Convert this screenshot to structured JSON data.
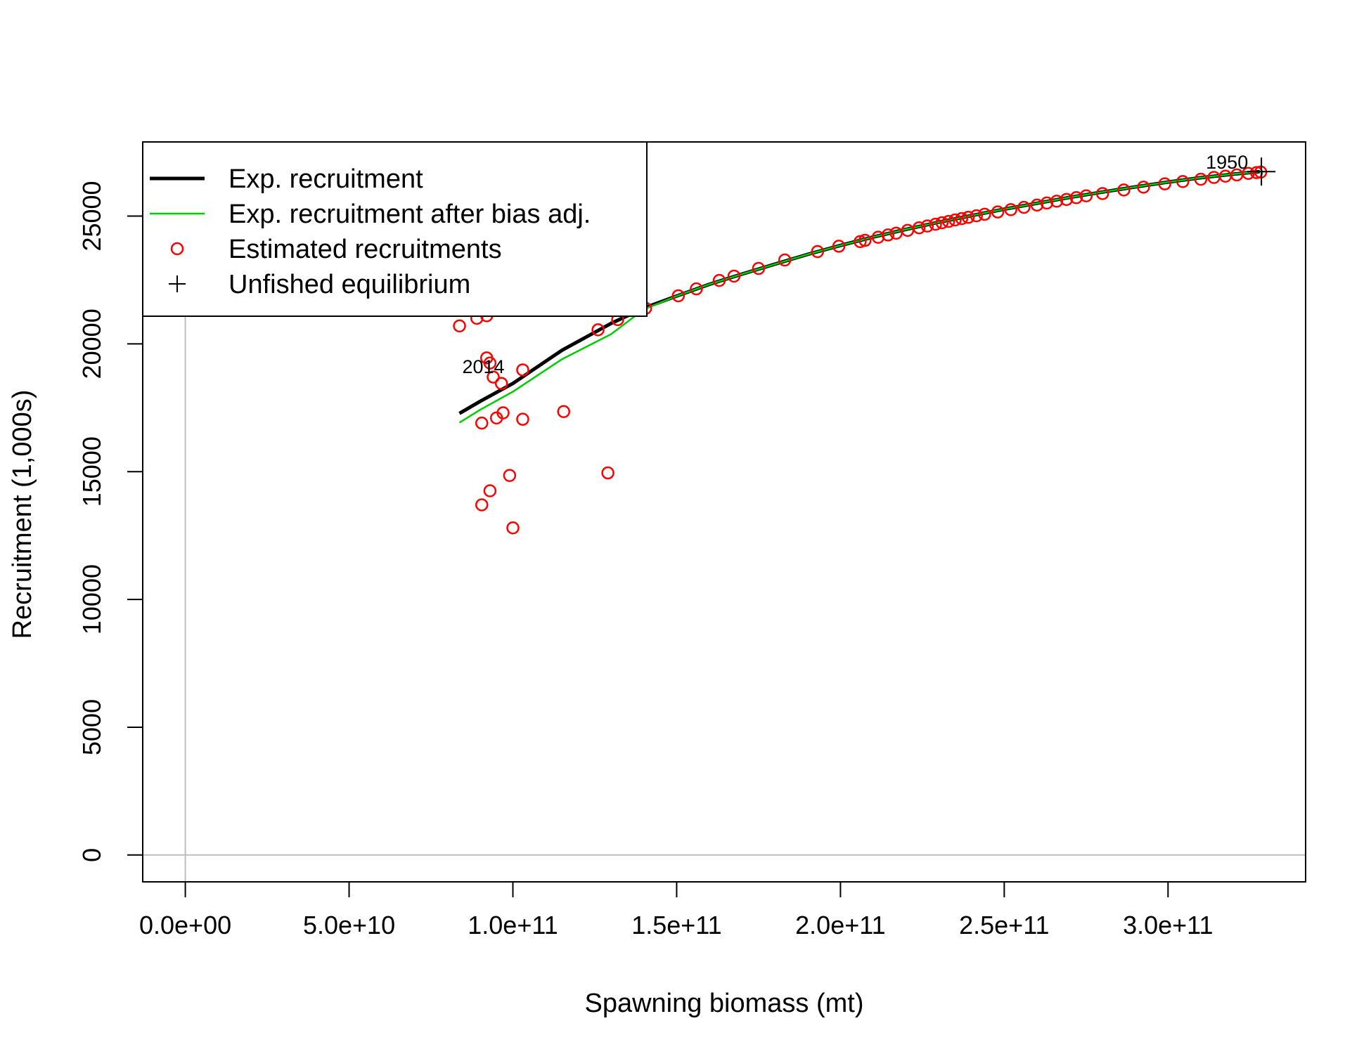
{
  "chart_data": {
    "type": "scatter",
    "title": "",
    "xlabel": "Spawning biomass (mt)",
    "ylabel": "Recruitment (1,000s)",
    "xlim": [
      -13000000000.0,
      342000000000.0
    ],
    "ylim": [
      -1050,
      27900
    ],
    "x_ticks": [
      0,
      50000000000.0,
      100000000000.0,
      150000000000.0,
      200000000000.0,
      250000000000.0,
      300000000000.0
    ],
    "x_tick_labels": [
      "0.0e+00",
      "5.0e+10",
      "1.0e+11",
      "1.5e+11",
      "2.0e+11",
      "2.5e+11",
      "3.0e+11"
    ],
    "y_ticks": [
      0,
      5000,
      10000,
      15000,
      20000,
      25000
    ],
    "y_tick_labels": [
      "0",
      "5000",
      "10000",
      "15000",
      "20000",
      "25000"
    ],
    "grid": false,
    "reference_lines": {
      "x": 0,
      "y": 0,
      "color": "#bebebe"
    },
    "legend": {
      "position": "top-left",
      "entries": [
        {
          "label": "Exp. recruitment",
          "color": "#000000",
          "symbol": "thick-line"
        },
        {
          "label": "Exp. recruitment after bias adj.",
          "color": "#00cd00",
          "symbol": "line"
        },
        {
          "label": "Estimated recruitments",
          "color": "#ff0000",
          "symbol": "circle"
        },
        {
          "label": "Unfished equilibrium",
          "color": "#000000",
          "symbol": "plus"
        }
      ]
    },
    "series": [
      {
        "name": "Exp. recruitment",
        "kind": "line",
        "color": "#000000",
        "points": [
          [
            83700000000.0,
            17280
          ],
          [
            90000000000.0,
            17750
          ],
          [
            100000000000.0,
            18450
          ],
          [
            115000000000.0,
            19750
          ],
          [
            130000000000.0,
            20800
          ],
          [
            140000000000.0,
            21400
          ],
          [
            150000000000.0,
            21870
          ],
          [
            160000000000.0,
            22330
          ],
          [
            170000000000.0,
            22730
          ],
          [
            180000000000.0,
            23120
          ],
          [
            190000000000.0,
            23500
          ],
          [
            200000000000.0,
            23850
          ],
          [
            210000000000.0,
            24180
          ],
          [
            220000000000.0,
            24480
          ],
          [
            230000000000.0,
            24760
          ],
          [
            240000000000.0,
            25020
          ],
          [
            250000000000.0,
            25270
          ],
          [
            260000000000.0,
            25500
          ],
          [
            270000000000.0,
            25730
          ],
          [
            280000000000.0,
            25940
          ],
          [
            290000000000.0,
            26140
          ],
          [
            300000000000.0,
            26330
          ],
          [
            310000000000.0,
            26500
          ],
          [
            320000000000.0,
            26640
          ],
          [
            328000000000.0,
            26740
          ]
        ]
      },
      {
        "name": "Exp. recruitment after bias adj.",
        "kind": "line",
        "color": "#00cd00",
        "points": [
          [
            83700000000.0,
            16920
          ],
          [
            90000000000.0,
            17420
          ],
          [
            100000000000.0,
            18130
          ],
          [
            115000000000.0,
            19400
          ],
          [
            130000000000.0,
            20380
          ],
          [
            140000000000.0,
            21350
          ],
          [
            150000000000.0,
            21870
          ],
          [
            160000000000.0,
            22330
          ],
          [
            170000000000.0,
            22730
          ],
          [
            180000000000.0,
            23120
          ],
          [
            190000000000.0,
            23500
          ],
          [
            200000000000.0,
            23850
          ],
          [
            210000000000.0,
            24180
          ],
          [
            220000000000.0,
            24480
          ],
          [
            230000000000.0,
            24760
          ],
          [
            240000000000.0,
            25020
          ],
          [
            250000000000.0,
            25270
          ],
          [
            260000000000.0,
            25500
          ],
          [
            270000000000.0,
            25730
          ],
          [
            280000000000.0,
            25940
          ],
          [
            290000000000.0,
            26140
          ],
          [
            300000000000.0,
            26330
          ],
          [
            310000000000.0,
            26500
          ],
          [
            320000000000.0,
            26640
          ],
          [
            328000000000.0,
            26740
          ]
        ]
      },
      {
        "name": "Estimated recruitments",
        "kind": "points",
        "color": "#ff0000",
        "points": [
          [
            328300000000.0,
            26720
          ],
          [
            327000000000.0,
            26700
          ],
          [
            324500000000.0,
            26670
          ],
          [
            321000000000.0,
            26610
          ],
          [
            317500000000.0,
            26560
          ],
          [
            314000000000.0,
            26510
          ],
          [
            310000000000.0,
            26440
          ],
          [
            304500000000.0,
            26350
          ],
          [
            299000000000.0,
            26260
          ],
          [
            292500000000.0,
            26130
          ],
          [
            286500000000.0,
            26020
          ],
          [
            280000000000.0,
            25880
          ],
          [
            275000000000.0,
            25790
          ],
          [
            272000000000.0,
            25720
          ],
          [
            269000000000.0,
            25650
          ],
          [
            266000000000.0,
            25580
          ],
          [
            263000000000.0,
            25510
          ],
          [
            260000000000.0,
            25430
          ],
          [
            256000000000.0,
            25340
          ],
          [
            252000000000.0,
            25250
          ],
          [
            248000000000.0,
            25160
          ],
          [
            244000000000.0,
            25070
          ],
          [
            241500000000.0,
            25010
          ],
          [
            239000000000.0,
            24950
          ],
          [
            237000000000.0,
            24900
          ],
          [
            235000000000.0,
            24850
          ],
          [
            233000000000.0,
            24790
          ],
          [
            231000000000.0,
            24740
          ],
          [
            229000000000.0,
            24680
          ],
          [
            226500000000.0,
            24610
          ],
          [
            224000000000.0,
            24540
          ],
          [
            220500000000.0,
            24440
          ],
          [
            217000000000.0,
            24330
          ],
          [
            214500000000.0,
            24260
          ],
          [
            211500000000.0,
            24170
          ],
          [
            207500000000.0,
            24050
          ],
          [
            206000000000.0,
            24000
          ],
          [
            199500000000.0,
            23820
          ],
          [
            193000000000.0,
            23610
          ],
          [
            183000000000.0,
            23280
          ],
          [
            175000000000.0,
            22950
          ],
          [
            167500000000.0,
            22650
          ],
          [
            163000000000.0,
            22480
          ],
          [
            156000000000.0,
            22150
          ],
          [
            150500000000.0,
            21880
          ],
          [
            140500000000.0,
            21390
          ],
          [
            132000000000.0,
            20950
          ],
          [
            126000000000.0,
            20550
          ],
          [
            83700000000.0,
            20700
          ],
          [
            89000000000.0,
            21000
          ],
          [
            92000000000.0,
            21100
          ],
          [
            92000000000.0,
            19450
          ],
          [
            93000000000.0,
            19250
          ],
          [
            94000000000.0,
            18700
          ],
          [
            96500000000.0,
            18450
          ],
          [
            103000000000.0,
            18980
          ],
          [
            90500000000.0,
            16900
          ],
          [
            95000000000.0,
            17100
          ],
          [
            97000000000.0,
            17300
          ],
          [
            103000000000.0,
            17050
          ],
          [
            115500000000.0,
            17350
          ],
          [
            99000000000.0,
            14850
          ],
          [
            93000000000.0,
            14250
          ],
          [
            90500000000.0,
            13700
          ],
          [
            100000000000.0,
            12800
          ],
          [
            129000000000.0,
            14950
          ]
        ]
      },
      {
        "name": "Unfished equilibrium",
        "kind": "marker",
        "color": "#000000",
        "points": [
          [
            328500000000.0,
            26740
          ]
        ]
      }
    ],
    "annotations": [
      {
        "text": "1950",
        "x": 318000000000.0,
        "y": 26850
      },
      {
        "text": "2014",
        "x": 91000000000.0,
        "y": 18850
      }
    ]
  }
}
